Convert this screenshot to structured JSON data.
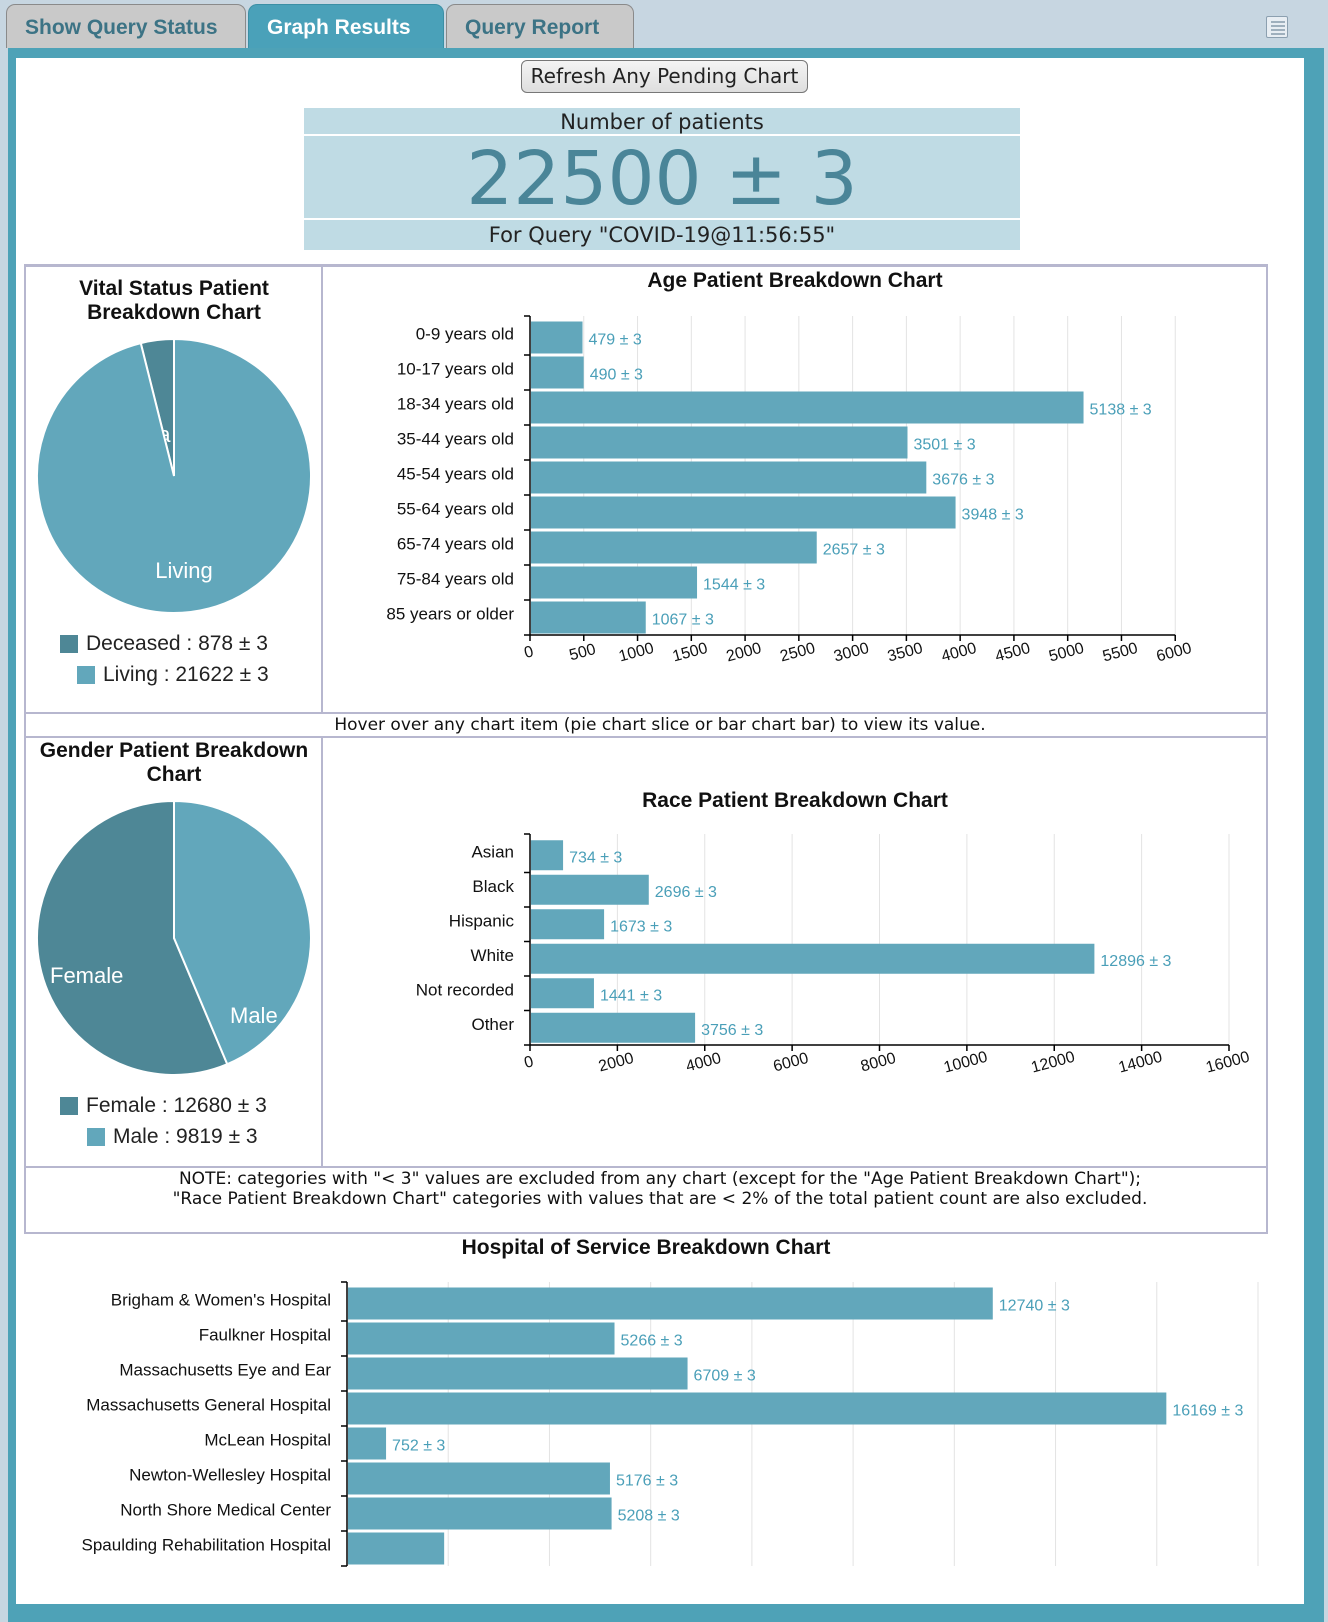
{
  "tabs": [
    {
      "label": "Show Query Status",
      "active": false
    },
    {
      "label": "Graph Results",
      "active": true
    },
    {
      "label": "Query Report",
      "active": false
    }
  ],
  "refresh_label": "Refresh Any Pending Chart",
  "summary": {
    "label": "Number of patients",
    "value": "22500 ± 3",
    "query": "For Query \"COVID-19@11:56:55\""
  },
  "colors": {
    "bar": "#62a7bb",
    "dark": "#4e8796",
    "label": "#4a9fb8",
    "gridline": "#e3e3e3"
  },
  "hover_note": "Hover over any chart item (pie chart slice or bar chart bar) to view its value.",
  "note_lines": [
    "NOTE: categories with \"< 3\" values are excluded from any chart (except for the \"Age Patient Breakdown Chart\");",
    "\"Race Patient Breakdown Chart\" categories with values that are < 2% of the total patient count are also excluded."
  ],
  "chart_data": [
    {
      "id": "vital",
      "type": "pie",
      "title": "Vital Status Patient Breakdown Chart",
      "title_lines": [
        "Vital Status Patient",
        "Breakdown Chart"
      ],
      "slices": [
        {
          "name": "Deceased",
          "value": 878,
          "slice_label": "ea",
          "color": "#4e8796"
        },
        {
          "name": "Living",
          "value": 21622,
          "slice_label": "Living",
          "color": "#62a7bb"
        }
      ],
      "legend": [
        "Deceased : 878 ± 3",
        "Living : 21622 ± 3"
      ]
    },
    {
      "id": "age",
      "type": "bar",
      "title": "Age Patient Breakdown Chart",
      "categories": [
        "0-9 years old",
        "10-17 years old",
        "18-34 years old",
        "35-44 years old",
        "45-54 years old",
        "55-64 years old",
        "65-74 years old",
        "75-84 years old",
        "85 years or older"
      ],
      "values": [
        479,
        490,
        5138,
        3501,
        3676,
        3948,
        2657,
        1544,
        1067
      ],
      "value_labels": [
        "479 ± 3",
        "490 ± 3",
        "5138 ± 3",
        "3501 ± 3",
        "3676 ± 3",
        "3948 ± 3",
        "2657 ± 3",
        "1544 ± 3",
        "1067 ± 3"
      ],
      "ticks": [
        0,
        500,
        1000,
        1500,
        2000,
        2500,
        3000,
        3500,
        4000,
        4500,
        5000,
        5500,
        6000
      ],
      "xlim": [
        0,
        6500
      ]
    },
    {
      "id": "gender",
      "type": "pie",
      "title": "Gender Patient Breakdown Chart",
      "title_lines": [
        "Gender Patient Breakdown",
        "Chart"
      ],
      "slices": [
        {
          "name": "Female",
          "value": 12680,
          "slice_label": "Female",
          "color": "#4e8796"
        },
        {
          "name": "Male",
          "value": 9819,
          "slice_label": "Male",
          "color": "#62a7bb"
        }
      ],
      "legend": [
        "Female : 12680 ± 3",
        "Male : 9819 ± 3"
      ]
    },
    {
      "id": "race",
      "type": "bar",
      "title": "Race Patient Breakdown Chart",
      "categories": [
        "Asian",
        "Black",
        "Hispanic",
        "White",
        "Not recorded",
        "Other"
      ],
      "values": [
        734,
        2696,
        1673,
        12896,
        1441,
        3756
      ],
      "value_labels": [
        "734 ± 3",
        "2696 ± 3",
        "1673 ± 3",
        "12896 ± 3",
        "1441 ± 3",
        "3756 ± 3"
      ],
      "ticks": [
        0,
        2000,
        4000,
        6000,
        8000,
        10000,
        12000,
        14000,
        16000
      ],
      "xlim": [
        0,
        16000
      ]
    },
    {
      "id": "hospital",
      "type": "bar",
      "title": "Hospital of Service Breakdown Chart",
      "categories": [
        "Brigham & Women's Hospital",
        "Faulkner Hospital",
        "Massachusetts Eye and Ear",
        "Massachusetts General Hospital",
        "McLean Hospital",
        "Newton-Wellesley Hospital",
        "North Shore Medical Center",
        "Spaulding Rehabilitation Hospital"
      ],
      "values": [
        12740,
        5266,
        6709,
        16169,
        752,
        5176,
        5208,
        1900
      ],
      "value_labels": [
        "12740 ± 3",
        "5266 ± 3",
        "6709 ± 3",
        "16169 ± 3",
        "752 ± 3",
        "5176 ± 3",
        "5208 ± 3",
        ""
      ],
      "xlim": [
        0,
        18000
      ]
    }
  ]
}
